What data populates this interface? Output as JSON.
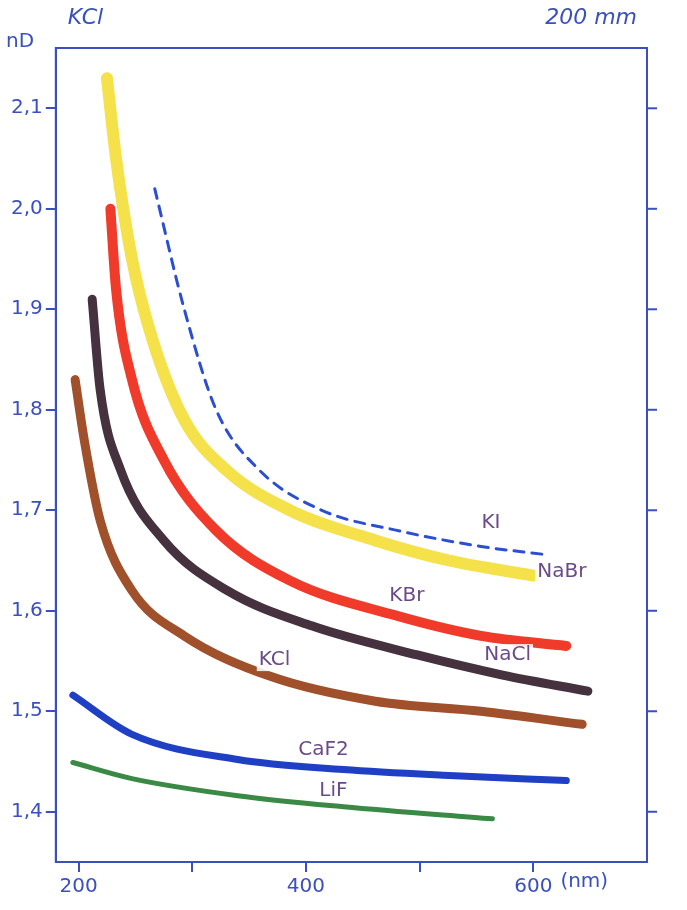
{
  "chart_data": {
    "type": "line",
    "annotations": [
      "KCl",
      "200 mm"
    ],
    "xlabel": "(nm)",
    "ylabel": "nD",
    "xlim": [
      180,
      700
    ],
    "ylim": [
      1.35,
      2.16
    ],
    "xticks": [
      200,
      {
        "value": 300,
        "label": null
      },
      400,
      {
        "value": 500,
        "label": null
      },
      600
    ],
    "yticks": [
      {
        "value": 1.4,
        "label": "1,4"
      },
      {
        "value": 1.5,
        "label": "1,5"
      },
      {
        "value": 1.6,
        "label": "1,6"
      },
      {
        "value": 1.7,
        "label": "1,7"
      },
      {
        "value": 1.8,
        "label": "1,8"
      },
      {
        "value": 1.9,
        "label": "1,9"
      },
      {
        "value": 2.0,
        "label": "2,0"
      },
      {
        "value": 2.1,
        "label": "2,1"
      }
    ],
    "grid": false,
    "series": [
      {
        "name": "KI",
        "color": "#2b4fd0",
        "line_style": "dashed",
        "x": [
          267,
          293,
          321,
          359,
          414,
          480,
          554,
          610
        ],
        "values": [
          2.02,
          1.9,
          1.8,
          1.74,
          1.7,
          1.68,
          1.664,
          1.656
        ]
      },
      {
        "name": "NaBr",
        "color": "#f5e14a",
        "line_style": "solid",
        "x": [
          225,
          233,
          247,
          265,
          293,
          330,
          386,
          461,
          526,
          600
        ],
        "values": [
          2.13,
          2.05,
          1.95,
          1.87,
          1.79,
          1.74,
          1.7,
          1.67,
          1.65,
          1.635
        ]
      },
      {
        "name": "KBr",
        "color": "#f03a2a",
        "line_style": "solid",
        "x": [
          228,
          233,
          247,
          275,
          321,
          386,
          480,
          554,
          629
        ],
        "values": [
          2.0,
          1.92,
          1.83,
          1.75,
          1.68,
          1.63,
          1.595,
          1.575,
          1.565
        ]
      },
      {
        "name": "NaCl",
        "color": "#46323f",
        "line_style": "solid",
        "x": [
          212,
          219,
          237,
          275,
          331,
          405,
          498,
          573,
          648
        ],
        "values": [
          1.91,
          1.82,
          1.74,
          1.67,
          1.62,
          1.585,
          1.556,
          1.536,
          1.52
        ]
      },
      {
        "name": "KCl",
        "color": "#a0502a",
        "line_style": "solid",
        "x": [
          197,
          205,
          219,
          247,
          293,
          368,
          461,
          554,
          643
        ],
        "values": [
          1.83,
          1.77,
          1.69,
          1.62,
          1.575,
          1.535,
          1.51,
          1.5,
          1.487
        ]
      },
      {
        "name": "CaF2",
        "color": "#1f3fc4",
        "line_style": "solid",
        "x": [
          195,
          247,
          340,
          433,
          526,
          629
        ],
        "values": [
          1.516,
          1.477,
          1.452,
          1.442,
          1.436,
          1.431
        ]
      },
      {
        "name": "LiF",
        "color": "#3a8a45",
        "line_style": "solid",
        "x": [
          195,
          247,
          340,
          433,
          564
        ],
        "values": [
          1.449,
          1.433,
          1.416,
          1.405,
          1.393
        ]
      }
    ]
  }
}
